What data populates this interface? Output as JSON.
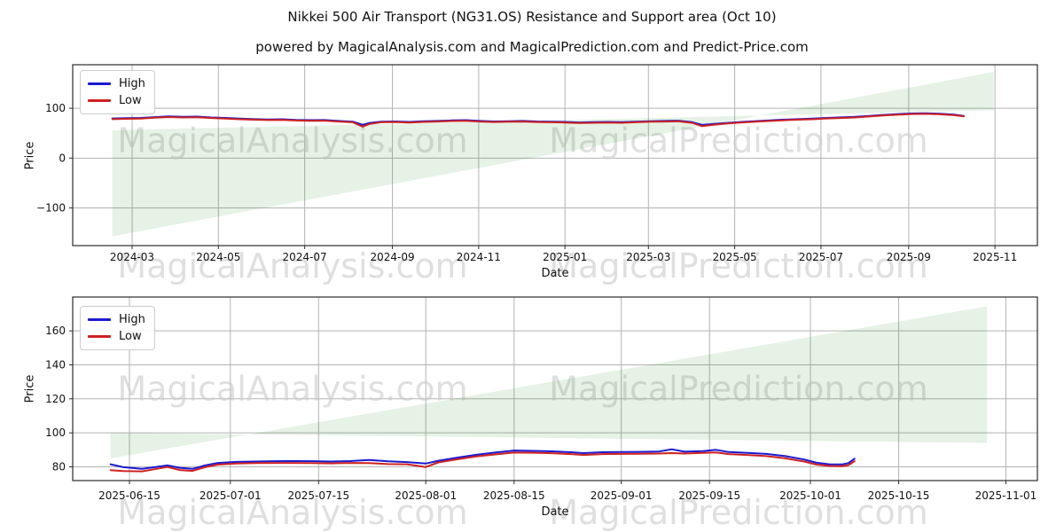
{
  "title": "Nikkei 500 Air Transport (NG31.OS) Resistance and Support area (Oct 10)",
  "subtitle": "powered by MagicalAnalysis.com and MagicalPrediction.com and Predict-Price.com",
  "watermarks": {
    "left": "MagicalAnalysis.com",
    "right": "MagicalPrediction.com"
  },
  "colors": {
    "high": "#1a1ad1",
    "low": "#cf2020",
    "wedge": "rgba(0,128,0,0.10)",
    "grid": "#b3b3b3",
    "spine": "#2b2b2b",
    "text": "#111111",
    "watermark": "#c9c9c9"
  },
  "chart_data": [
    {
      "type": "line",
      "ylabel": "Price",
      "xlabel": "Date",
      "ylim": [
        -175.6,
        187.4
      ],
      "xlim": [
        "2024-01-19",
        "2025-12-01"
      ],
      "yticks": [
        100,
        0,
        -100
      ],
      "ytick_labels": [
        "100",
        "0",
        "−100"
      ],
      "xticks": [
        {
          "label": "2024-03",
          "date": "2024-03-01"
        },
        {
          "label": "2024-05",
          "date": "2024-05-01"
        },
        {
          "label": "2024-07",
          "date": "2024-07-01"
        },
        {
          "label": "2024-09",
          "date": "2024-09-01"
        },
        {
          "label": "2024-11",
          "date": "2024-11-01"
        },
        {
          "label": "2025-01",
          "date": "2025-01-01"
        },
        {
          "label": "2025-03",
          "date": "2025-03-01"
        },
        {
          "label": "2025-05",
          "date": "2025-05-01"
        },
        {
          "label": "2025-07",
          "date": "2025-07-01"
        },
        {
          "label": "2025-09",
          "date": "2025-09-01"
        },
        {
          "label": "2025-11",
          "date": "2025-11-01"
        }
      ],
      "series": [
        {
          "name": "High",
          "key": "high"
        },
        {
          "name": "Low",
          "key": "low"
        }
      ],
      "dates": [
        "2024-02-16",
        "2024-02-26",
        "2024-03-07",
        "2024-03-17",
        "2024-03-27",
        "2024-04-06",
        "2024-04-16",
        "2024-04-26",
        "2024-05-06",
        "2024-05-16",
        "2024-05-26",
        "2024-06-05",
        "2024-06-15",
        "2024-06-25",
        "2024-07-05",
        "2024-07-15",
        "2024-07-25",
        "2024-08-04",
        "2024-08-11",
        "2024-08-16",
        "2024-08-24",
        "2024-09-03",
        "2024-09-13",
        "2024-09-23",
        "2024-10-03",
        "2024-10-13",
        "2024-10-23",
        "2024-11-02",
        "2024-11-12",
        "2024-11-22",
        "2024-12-02",
        "2024-12-12",
        "2024-12-22",
        "2025-01-01",
        "2025-01-11",
        "2025-01-21",
        "2025-01-31",
        "2025-02-10",
        "2025-02-20",
        "2025-03-02",
        "2025-03-12",
        "2025-03-22",
        "2025-04-01",
        "2025-04-08",
        "2025-04-16",
        "2025-04-26",
        "2025-05-06",
        "2025-05-16",
        "2025-05-26",
        "2025-06-05",
        "2025-06-15",
        "2025-06-25",
        "2025-07-05",
        "2025-07-15",
        "2025-07-25",
        "2025-08-04",
        "2025-08-14",
        "2025-08-24",
        "2025-09-03",
        "2025-09-13",
        "2025-09-23",
        "2025-10-03",
        "2025-10-10"
      ],
      "high": [
        79.5,
        80.2,
        80.6,
        82.3,
        83.8,
        82.9,
        83.3,
        81.6,
        80.6,
        79.2,
        78.2,
        77.6,
        77.9,
        76.6,
        76.1,
        76.4,
        74.6,
        73.1,
        67.0,
        70.6,
        73.1,
        73.6,
        72.6,
        73.9,
        74.6,
        75.6,
        76.1,
        74.6,
        73.6,
        74.1,
        74.6,
        73.6,
        73.1,
        72.6,
        71.6,
        72.1,
        72.6,
        72.1,
        73.1,
        74.1,
        74.6,
        75.1,
        72.1,
        66.6,
        68.7,
        70.7,
        72.7,
        74.2,
        75.7,
        77.2,
        78.2,
        79.2,
        80.7,
        81.7,
        82.7,
        84.7,
        86.7,
        88.2,
        89.6,
        90.1,
        89.1,
        87.3,
        84.8
      ],
      "low": [
        78.2,
        78.9,
        79.3,
        81.0,
        82.5,
        81.6,
        82.0,
        80.4,
        79.4,
        78.0,
        77.0,
        76.4,
        76.6,
        75.4,
        74.9,
        75.1,
        73.4,
        71.9,
        63.2,
        68.7,
        71.9,
        72.4,
        71.4,
        72.7,
        73.4,
        74.4,
        74.9,
        73.4,
        72.4,
        72.9,
        73.4,
        72.4,
        71.9,
        71.4,
        70.4,
        70.9,
        71.4,
        70.9,
        71.9,
        72.9,
        73.4,
        73.9,
        70.6,
        64.1,
        67.0,
        69.5,
        71.5,
        73.0,
        74.5,
        76.0,
        77.0,
        78.0,
        79.5,
        80.5,
        81.5,
        83.5,
        85.5,
        87.0,
        88.4,
        88.9,
        87.9,
        86.1,
        83.6
      ],
      "support_resistance_area": {
        "support": [
          [
            "2024-02-16",
            -157
          ],
          [
            "2025-10-31",
            173
          ]
        ],
        "resistance": [
          [
            "2024-02-16",
            56
          ],
          [
            "2025-10-31",
            96
          ]
        ]
      }
    },
    {
      "type": "line",
      "ylabel": "Price",
      "xlabel": "Date",
      "ylim": [
        71.9,
        179.9
      ],
      "xlim": [
        "2025-06-06",
        "2025-11-06"
      ],
      "yticks": [
        160,
        140,
        120,
        100,
        80
      ],
      "ytick_labels": [
        "160",
        "140",
        "120",
        "100",
        "80"
      ],
      "xticks": [
        {
          "label": "2025-06-15",
          "date": "2025-06-15"
        },
        {
          "label": "2025-07-01",
          "date": "2025-07-01"
        },
        {
          "label": "2025-07-15",
          "date": "2025-07-15"
        },
        {
          "label": "2025-08-01",
          "date": "2025-08-01"
        },
        {
          "label": "2025-08-15",
          "date": "2025-08-15"
        },
        {
          "label": "2025-09-01",
          "date": "2025-09-01"
        },
        {
          "label": "2025-09-15",
          "date": "2025-09-15"
        },
        {
          "label": "2025-10-01",
          "date": "2025-10-01"
        },
        {
          "label": "2025-10-15",
          "date": "2025-10-15"
        },
        {
          "label": "2025-11-01",
          "date": "2025-11-01"
        }
      ],
      "series": [
        {
          "name": "High",
          "key": "high"
        },
        {
          "name": "Low",
          "key": "low"
        }
      ],
      "dates": [
        "2025-06-12",
        "2025-06-14",
        "2025-06-17",
        "2025-06-19",
        "2025-06-21",
        "2025-06-23",
        "2025-06-25",
        "2025-06-27",
        "2025-06-29",
        "2025-07-02",
        "2025-07-05",
        "2025-07-08",
        "2025-07-11",
        "2025-07-14",
        "2025-07-17",
        "2025-07-20",
        "2025-07-23",
        "2025-07-26",
        "2025-07-29",
        "2025-08-01",
        "2025-08-03",
        "2025-08-06",
        "2025-08-09",
        "2025-08-12",
        "2025-08-15",
        "2025-08-18",
        "2025-08-21",
        "2025-08-24",
        "2025-08-26",
        "2025-08-29",
        "2025-09-01",
        "2025-09-04",
        "2025-09-07",
        "2025-09-09",
        "2025-09-11",
        "2025-09-14",
        "2025-09-16",
        "2025-09-18",
        "2025-09-21",
        "2025-09-24",
        "2025-09-27",
        "2025-09-30",
        "2025-10-02",
        "2025-10-04",
        "2025-10-06",
        "2025-10-07",
        "2025-10-08"
      ],
      "high": [
        81.5,
        79.8,
        78.8,
        79.8,
        80.8,
        79.4,
        78.8,
        80.8,
        82.3,
        82.9,
        83.1,
        83.3,
        83.4,
        83.3,
        83.1,
        83.4,
        84.0,
        83.2,
        82.8,
        81.9,
        83.6,
        85.4,
        87.1,
        88.4,
        89.6,
        89.4,
        89.1,
        88.6,
        88.1,
        88.6,
        88.7,
        88.8,
        89.0,
        90.3,
        88.9,
        89.3,
        90.0,
        88.7,
        88.2,
        87.6,
        86.3,
        84.3,
        82.4,
        81.5,
        81.4,
        82.2,
        84.8
      ],
      "low": [
        78.0,
        77.5,
        77.3,
        78.6,
        79.9,
        78.1,
        77.6,
        79.8,
        81.3,
        81.9,
        82.2,
        82.3,
        82.3,
        82.2,
        82.0,
        82.3,
        82.2,
        81.6,
        81.5,
        79.9,
        82.6,
        84.4,
        86.1,
        87.3,
        88.4,
        88.3,
        88.0,
        87.5,
        87.0,
        87.5,
        87.6,
        87.7,
        87.8,
        88.1,
        87.8,
        88.2,
        88.5,
        87.5,
        87.0,
        86.3,
        85.0,
        83.1,
        81.3,
        80.5,
        80.4,
        81.0,
        83.3
      ],
      "support_resistance_area": {
        "support": [
          [
            "2025-06-12",
            85
          ],
          [
            "2025-10-29",
            174.5
          ]
        ],
        "resistance": [
          [
            "2025-06-12",
            100
          ],
          [
            "2025-10-29",
            94
          ]
        ]
      }
    }
  ]
}
